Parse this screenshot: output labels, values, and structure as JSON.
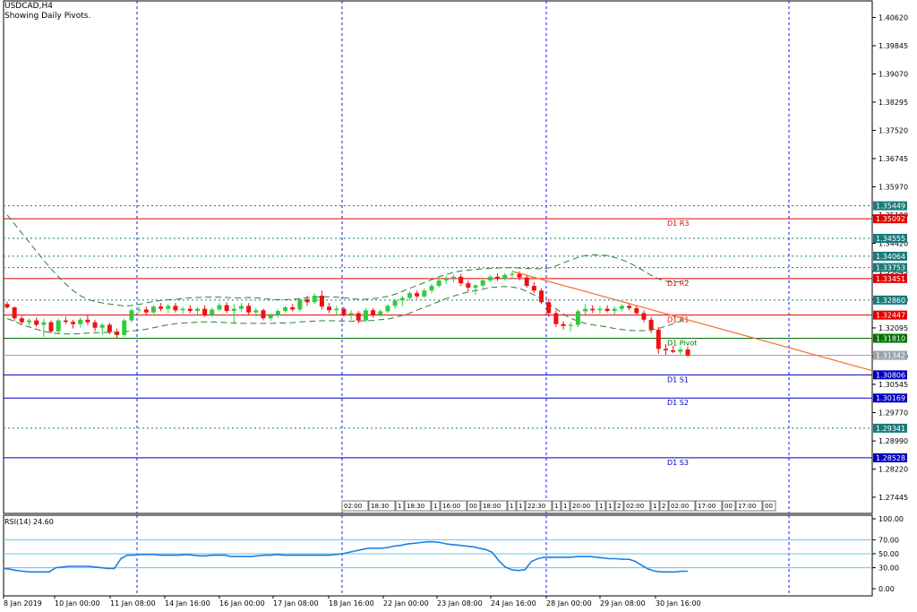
{
  "header": {
    "symbol": "USDCAD,H4",
    "subtitle": "Showing Daily Pivots."
  },
  "chart_data": {
    "type": "candlestick",
    "symbol": "USDCAD",
    "timeframe": "H4",
    "ylim": [
      1.27,
      1.411
    ],
    "y_ticks": [
      "1.40620",
      "1.39845",
      "1.39070",
      "1.38295",
      "1.37520",
      "1.36745",
      "1.35970",
      "1.35190",
      "1.34420",
      "1.33645",
      "1.32870",
      "1.32095",
      "1.31320",
      "1.30545",
      "1.29770",
      "1.28990",
      "1.28220",
      "1.27445"
    ],
    "x_ticks": [
      "8 Jan 2019",
      "10 Jan 00:00",
      "11 Jan 08:00",
      "14 Jan 16:00",
      "16 Jan 00:00",
      "17 Jan 08:00",
      "18 Jan 16:00",
      "22 Jan 00:00",
      "23 Jan 08:00",
      "24 Jan 16:00",
      "28 Jan 00:00",
      "29 Jan 08:00",
      "30 Jan 16:00"
    ],
    "pivot_levels": [
      {
        "name": "D1 R3",
        "value": 1.35092,
        "label": "1.35092",
        "color": "#e00000"
      },
      {
        "name": "D1 R2",
        "value": 1.33451,
        "label": "1.33451",
        "color": "#e00000"
      },
      {
        "name": "D1 R1",
        "value": 1.32447,
        "label": "1.32447",
        "color": "#e00000"
      },
      {
        "name": "D1 Pivot",
        "value": 1.3181,
        "label": "1.31810",
        "color": "#007000"
      },
      {
        "name": "D1 S1",
        "value": 1.30806,
        "label": "1.30806",
        "color": "#0000c0"
      },
      {
        "name": "D1 S2",
        "value": 1.30169,
        "label": "1.30169",
        "color": "#0000c0"
      },
      {
        "name": "D1 S3",
        "value": 1.28528,
        "label": "1.28528",
        "color": "#0000c0"
      }
    ],
    "dotted_levels": [
      {
        "value": 1.35449,
        "label": "1.35449"
      },
      {
        "value": 1.34555,
        "label": "1.34555"
      },
      {
        "value": 1.34064,
        "label": "1.34064"
      },
      {
        "value": 1.33753,
        "label": "1.33753"
      },
      {
        "value": 1.3286,
        "label": "1.32860"
      },
      {
        "value": 1.29341,
        "label": "1.29341"
      }
    ],
    "current_price": {
      "value": 1.31342,
      "label": "1.31342"
    },
    "candles": [
      [
        1.3275,
        1.3282,
        1.3262,
        1.3266
      ],
      [
        1.3266,
        1.3268,
        1.3228,
        1.3236
      ],
      [
        1.3236,
        1.3242,
        1.3218,
        1.3225
      ],
      [
        1.3225,
        1.3235,
        1.3215,
        1.323
      ],
      [
        1.323,
        1.3238,
        1.3212,
        1.3218
      ],
      [
        1.3218,
        1.3235,
        1.3185,
        1.3225
      ],
      [
        1.3225,
        1.323,
        1.3195,
        1.32
      ],
      [
        1.32,
        1.3235,
        1.3195,
        1.323
      ],
      [
        1.323,
        1.324,
        1.322,
        1.3226
      ],
      [
        1.3226,
        1.3232,
        1.3208,
        1.322
      ],
      [
        1.322,
        1.3238,
        1.321,
        1.3232
      ],
      [
        1.3232,
        1.3245,
        1.3218,
        1.3225
      ],
      [
        1.3225,
        1.3232,
        1.32,
        1.321
      ],
      [
        1.321,
        1.3222,
        1.319,
        1.3218
      ],
      [
        1.3218,
        1.3224,
        1.3192,
        1.3198
      ],
      [
        1.3198,
        1.3208,
        1.3182,
        1.319
      ],
      [
        1.319,
        1.3235,
        1.3185,
        1.323
      ],
      [
        1.323,
        1.3262,
        1.3225,
        1.3258
      ],
      [
        1.3258,
        1.3268,
        1.325,
        1.326
      ],
      [
        1.326,
        1.3268,
        1.3245,
        1.3252
      ],
      [
        1.3252,
        1.3272,
        1.3248,
        1.3268
      ],
      [
        1.3268,
        1.3278,
        1.3255,
        1.3262
      ],
      [
        1.3262,
        1.3275,
        1.325,
        1.327
      ],
      [
        1.327,
        1.3278,
        1.3252,
        1.3258
      ],
      [
        1.3258,
        1.3268,
        1.3248,
        1.3262
      ],
      [
        1.3262,
        1.3272,
        1.325,
        1.3256
      ],
      [
        1.3256,
        1.3266,
        1.3245,
        1.3262
      ],
      [
        1.3262,
        1.3272,
        1.324,
        1.3245
      ],
      [
        1.3245,
        1.3265,
        1.324,
        1.326
      ],
      [
        1.326,
        1.3278,
        1.3255,
        1.3272
      ],
      [
        1.3272,
        1.328,
        1.325,
        1.3256
      ],
      [
        1.3256,
        1.3275,
        1.322,
        1.3262
      ],
      [
        1.3262,
        1.3278,
        1.3254,
        1.327
      ],
      [
        1.327,
        1.3278,
        1.3245,
        1.3252
      ],
      [
        1.3252,
        1.3264,
        1.324,
        1.3258
      ],
      [
        1.3258,
        1.3262,
        1.323,
        1.3236
      ],
      [
        1.3236,
        1.325,
        1.3228,
        1.3244
      ],
      [
        1.3244,
        1.3262,
        1.3238,
        1.3256
      ],
      [
        1.3256,
        1.327,
        1.3252,
        1.3266
      ],
      [
        1.3266,
        1.3275,
        1.3255,
        1.326
      ],
      [
        1.326,
        1.3292,
        1.3255,
        1.3288
      ],
      [
        1.3288,
        1.3298,
        1.327,
        1.328
      ],
      [
        1.328,
        1.3305,
        1.3275,
        1.3298
      ],
      [
        1.3298,
        1.3312,
        1.326,
        1.3268
      ],
      [
        1.3268,
        1.3278,
        1.325,
        1.3258
      ],
      [
        1.3258,
        1.327,
        1.3245,
        1.3262
      ],
      [
        1.3262,
        1.3268,
        1.324,
        1.3246
      ],
      [
        1.3246,
        1.3258,
        1.3232,
        1.325
      ],
      [
        1.325,
        1.3256,
        1.3222,
        1.323
      ],
      [
        1.323,
        1.3265,
        1.3225,
        1.3258
      ],
      [
        1.3258,
        1.3264,
        1.3238,
        1.3245
      ],
      [
        1.3245,
        1.326,
        1.324,
        1.3255
      ],
      [
        1.3255,
        1.3275,
        1.325,
        1.327
      ],
      [
        1.327,
        1.329,
        1.3262,
        1.3285
      ],
      [
        1.3285,
        1.3298,
        1.327,
        1.3292
      ],
      [
        1.3292,
        1.331,
        1.3285,
        1.3305
      ],
      [
        1.3305,
        1.3312,
        1.329,
        1.3296
      ],
      [
        1.3296,
        1.3318,
        1.3292,
        1.3312
      ],
      [
        1.3312,
        1.333,
        1.3305,
        1.3325
      ],
      [
        1.3325,
        1.3345,
        1.332,
        1.334
      ],
      [
        1.334,
        1.3352,
        1.333,
        1.3345
      ],
      [
        1.3345,
        1.3356,
        1.3335,
        1.335
      ],
      [
        1.335,
        1.3358,
        1.3325,
        1.3332
      ],
      [
        1.3332,
        1.334,
        1.331,
        1.332
      ],
      [
        1.332,
        1.333,
        1.33,
        1.3326
      ],
      [
        1.3326,
        1.3345,
        1.332,
        1.334
      ],
      [
        1.334,
        1.3355,
        1.3335,
        1.335
      ],
      [
        1.335,
        1.336,
        1.3338,
        1.3345
      ],
      [
        1.3345,
        1.336,
        1.334,
        1.3355
      ],
      [
        1.3355,
        1.3364,
        1.3345,
        1.3358
      ],
      [
        1.3358,
        1.3365,
        1.334,
        1.3348
      ],
      [
        1.3348,
        1.3356,
        1.332,
        1.3325
      ],
      [
        1.3325,
        1.3335,
        1.3305,
        1.3312
      ],
      [
        1.3312,
        1.3318,
        1.3275,
        1.328
      ],
      [
        1.328,
        1.329,
        1.324,
        1.325
      ],
      [
        1.325,
        1.3258,
        1.3212,
        1.322
      ],
      [
        1.322,
        1.3228,
        1.3205,
        1.3215
      ],
      [
        1.3215,
        1.3225,
        1.32,
        1.3218
      ],
      [
        1.3218,
        1.326,
        1.3212,
        1.3255
      ],
      [
        1.3255,
        1.3275,
        1.3245,
        1.3262
      ],
      [
        1.3262,
        1.3272,
        1.325,
        1.3258
      ],
      [
        1.3258,
        1.327,
        1.3248,
        1.3262
      ],
      [
        1.3262,
        1.3272,
        1.3252,
        1.3256
      ],
      [
        1.3256,
        1.3268,
        1.3245,
        1.3262
      ],
      [
        1.3262,
        1.3275,
        1.3255,
        1.327
      ],
      [
        1.327,
        1.3278,
        1.3258,
        1.3264
      ],
      [
        1.3264,
        1.3272,
        1.3245,
        1.325
      ],
      [
        1.325,
        1.3258,
        1.3225,
        1.3232
      ],
      [
        1.3232,
        1.324,
        1.3195,
        1.3205
      ],
      [
        1.3205,
        1.3212,
        1.3138,
        1.3152
      ],
      [
        1.3152,
        1.3165,
        1.3135,
        1.3148
      ],
      [
        1.3148,
        1.316,
        1.314,
        1.3144
      ],
      [
        1.3144,
        1.3158,
        1.3136,
        1.315
      ],
      [
        1.315,
        1.3158,
        1.313,
        1.3134
      ]
    ],
    "moving_averages": [
      {
        "name": "ma-upper",
        "color": "#2e7d32",
        "values": [
          1.352,
          1.3495,
          1.347,
          1.3445,
          1.342,
          1.3395,
          1.3372,
          1.335,
          1.333,
          1.3312,
          1.3298,
          1.3288,
          1.3282,
          1.3278,
          1.3275,
          1.3272,
          1.327,
          1.3271,
          1.3274,
          1.3278,
          1.3282,
          1.3285,
          1.3287,
          1.3288,
          1.329,
          1.3292,
          1.3293,
          1.3294,
          1.3294,
          1.3294,
          1.3293,
          1.3292,
          1.3292,
          1.3293,
          1.3292,
          1.329,
          1.3288,
          1.3287,
          1.3287,
          1.3288,
          1.329,
          1.3292,
          1.3294,
          1.3295,
          1.3295,
          1.3294,
          1.3292,
          1.329,
          1.3288,
          1.3288,
          1.329,
          1.3292,
          1.3296,
          1.3302,
          1.331,
          1.3318,
          1.3326,
          1.3334,
          1.3342,
          1.335,
          1.3356,
          1.3362,
          1.3366,
          1.3368,
          1.337,
          1.3372,
          1.3373,
          1.3374,
          1.3375,
          1.3375,
          1.3374,
          1.3373,
          1.3372,
          1.3372,
          1.3374,
          1.338,
          1.3388,
          1.3396,
          1.3403,
          1.3408,
          1.341,
          1.341,
          1.3408,
          1.3403,
          1.3397,
          1.3388,
          1.3378,
          1.3366,
          1.3354,
          1.3344,
          1.3338,
          1.3335,
          1.3336,
          1.334
        ]
      },
      {
        "name": "ma-lower",
        "color": "#2e7d32",
        "values": [
          1.3235,
          1.3228,
          1.3218,
          1.3212,
          1.3206,
          1.32,
          1.3196,
          1.3194,
          1.3193,
          1.3193,
          1.3194,
          1.3195,
          1.3196,
          1.3197,
          1.3197,
          1.3198,
          1.3199,
          1.3201,
          1.3203,
          1.3206,
          1.321,
          1.3214,
          1.3218,
          1.3221,
          1.3223,
          1.3224,
          1.3225,
          1.3226,
          1.3226,
          1.3225,
          1.3224,
          1.3223,
          1.3222,
          1.3222,
          1.3222,
          1.3222,
          1.3222,
          1.3223,
          1.3223,
          1.3224,
          1.3226,
          1.3227,
          1.3228,
          1.3229,
          1.3229,
          1.3229,
          1.3228,
          1.3228,
          1.3228,
          1.3229,
          1.323,
          1.3232,
          1.3234,
          1.3238,
          1.3244,
          1.325,
          1.3258,
          1.3266,
          1.3274,
          1.3282,
          1.329,
          1.3297,
          1.3303,
          1.3308,
          1.3312,
          1.3316,
          1.332,
          1.3322,
          1.3323,
          1.3322,
          1.3318,
          1.331,
          1.33,
          1.3288,
          1.3275,
          1.3262,
          1.3248,
          1.3236,
          1.3228,
          1.3222,
          1.3218,
          1.3215,
          1.3212,
          1.3208,
          1.3205,
          1.3203,
          1.3202,
          1.3202,
          1.3204,
          1.3208,
          1.3214,
          1.3221,
          1.3228,
          1.3232
        ]
      }
    ],
    "trendline": {
      "from": [
        1.3365
      ],
      "to": [
        1.3092
      ]
    },
    "vertical_grid": "dashed blue",
    "session_tags": [
      "02:00",
      "18:30",
      "1",
      "18:30",
      "1",
      "16:00",
      "00",
      "18:00",
      "1",
      "1",
      "22:30",
      "1",
      "1",
      "20:00",
      "1",
      "1",
      "2",
      "02:00",
      "1",
      "2",
      "02:00",
      "17:00",
      "00",
      "17:00",
      "00"
    ],
    "rsi": {
      "label": "RSI(14) 24.60",
      "period": 14,
      "current": 24.6,
      "ylim": [
        0,
        100
      ],
      "y_ticks": [
        "100.00",
        "70.00",
        "50.00",
        "30.00",
        "0.00"
      ],
      "levels": [
        70,
        50,
        30
      ],
      "values": [
        29,
        28,
        26,
        25,
        24,
        24,
        24,
        24,
        30,
        31,
        32,
        32,
        32,
        32,
        31,
        30,
        29,
        29,
        43,
        48,
        48,
        49,
        49,
        49,
        48,
        48,
        48,
        48,
        49,
        48,
        47,
        47,
        48,
        48,
        48,
        46,
        46,
        46,
        46,
        47,
        48,
        48,
        49,
        48,
        48,
        48,
        48,
        48,
        48,
        48,
        48,
        49,
        50,
        52,
        54,
        56,
        58,
        58,
        58,
        59,
        61,
        62,
        64,
        65,
        66,
        67,
        67,
        66,
        64,
        63,
        62,
        61,
        60,
        58,
        56,
        52,
        40,
        31,
        27,
        26,
        27,
        39,
        43,
        45,
        45,
        45,
        45,
        45,
        46,
        46,
        46,
        45,
        44,
        43,
        43,
        42,
        42,
        39,
        33,
        28,
        25,
        24,
        24,
        24,
        25,
        25
      ]
    }
  }
}
